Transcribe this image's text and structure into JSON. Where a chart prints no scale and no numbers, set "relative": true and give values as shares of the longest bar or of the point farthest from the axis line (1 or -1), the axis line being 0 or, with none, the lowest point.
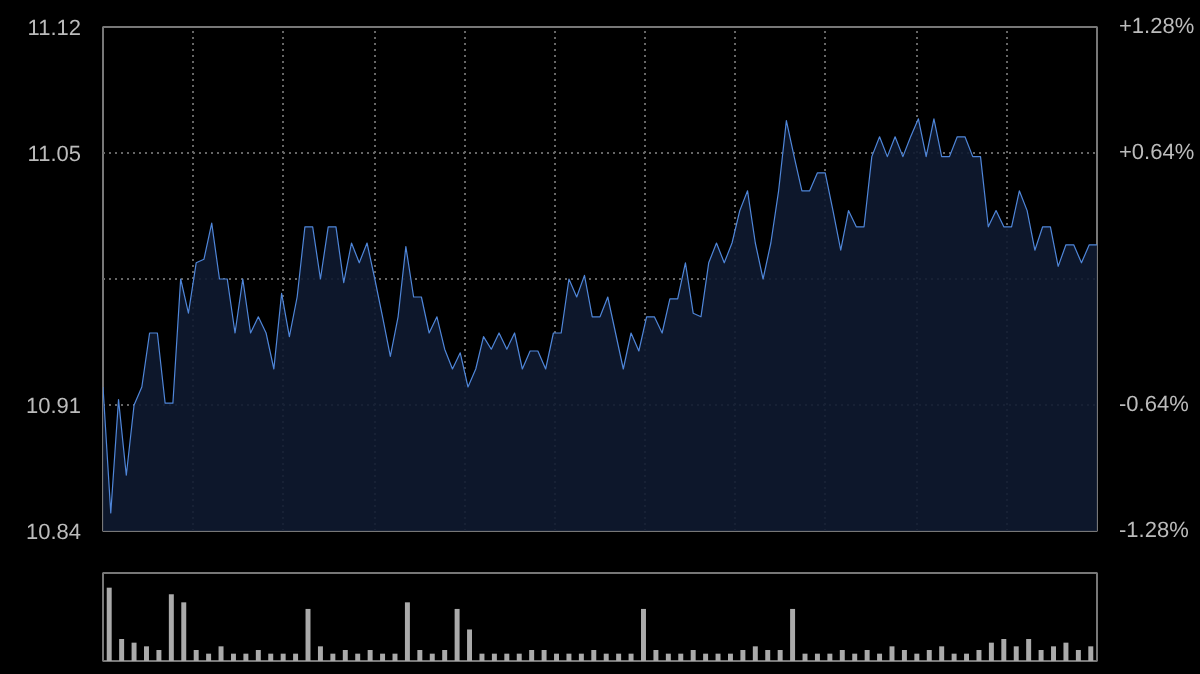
{
  "chart_data": [
    {
      "type": "area",
      "categories": [
        null,
        null,
        null,
        null,
        null,
        null,
        null,
        null,
        null,
        null,
        null,
        null,
        null,
        null,
        null,
        null,
        null,
        null,
        null,
        null,
        null,
        null,
        null,
        null,
        null,
        null,
        null,
        null,
        null,
        null,
        null,
        null,
        null,
        null,
        null,
        null,
        null,
        null,
        null,
        null,
        null,
        null,
        null,
        null,
        null,
        null,
        null,
        null,
        null,
        null,
        null,
        null,
        null,
        null,
        null,
        null,
        null,
        null,
        null,
        null,
        null,
        null,
        null,
        null,
        null,
        null,
        null,
        null,
        null,
        null,
        null,
        null,
        null,
        null,
        null,
        null,
        null,
        null,
        null,
        null,
        null,
        null,
        null,
        null,
        null,
        null,
        null,
        null,
        null,
        null,
        null,
        null,
        null,
        null,
        null,
        null,
        null,
        null,
        null,
        null,
        null,
        null,
        null,
        null,
        null,
        null,
        null,
        null,
        null,
        null,
        null,
        null,
        null,
        null,
        null,
        null,
        null,
        null,
        null,
        null,
        null,
        null,
        null,
        null,
        null,
        null,
        null,
        null,
        null
      ],
      "ylim": [
        10.84,
        11.12
      ],
      "yticks": [
        10.84,
        10.91,
        {
          "value": 10.98,
          "label": null
        },
        11.05,
        11.12
      ],
      "y2lim": [
        -1.28,
        1.28
      ],
      "y2ticks": [
        {
          "value": -1.28,
          "label": "-1.28%"
        },
        {
          "value": -0.64,
          "label": "-0.64%"
        },
        {
          "value": 0.64,
          "label": "+0.64%"
        },
        {
          "value": 1.28,
          "label": "+1.28%"
        }
      ],
      "grid": true,
      "series": [
        {
          "color": "#4f86d9",
          "values": [
            10.92,
            10.85,
            10.913,
            10.871,
            10.91,
            10.92,
            10.95,
            10.95,
            10.911,
            10.911,
            10.98,
            10.961,
            10.989,
            10.991,
            11.011,
            10.98,
            10.98,
            10.95,
            10.98,
            10.95,
            10.959,
            10.95,
            10.93,
            10.972,
            10.948,
            10.97,
            11.009,
            11.009,
            10.98,
            11.009,
            11.009,
            10.978,
            11.0,
            10.989,
            11.0,
            10.98,
            10.959,
            10.937,
            10.959,
            10.998,
            10.97,
            10.97,
            10.95,
            10.959,
            10.941,
            10.93,
            10.939,
            10.92,
            10.93,
            10.948,
            10.941,
            10.95,
            10.941,
            10.95,
            10.93,
            10.94,
            10.94,
            10.93,
            10.95,
            10.95,
            10.98,
            10.97,
            10.982,
            10.959,
            10.959,
            10.97,
            10.95,
            10.93,
            10.95,
            10.94,
            10.959,
            10.959,
            10.95,
            10.969,
            10.969,
            10.989,
            10.961,
            10.959,
            10.989,
            11.0,
            10.989,
            11.0,
            11.018,
            11.029,
            11.0,
            10.98,
            11.0,
            11.029,
            11.068,
            11.048,
            11.029,
            11.029,
            11.039,
            11.039,
            11.018,
            10.996,
            11.018,
            11.009,
            11.009,
            11.048,
            11.059,
            11.048,
            11.059,
            11.048,
            11.059,
            11.069,
            11.048,
            11.069,
            11.048,
            11.048,
            11.059,
            11.059,
            11.048,
            11.048,
            11.009,
            11.018,
            11.009,
            11.009,
            11.029,
            11.018,
            10.996,
            11.009,
            11.009,
            10.987,
            10.999,
            10.999,
            10.989,
            10.999,
            10.999
          ]
        }
      ]
    },
    {
      "type": "bar",
      "relative": true,
      "color": "#aaaaaa",
      "grid": false,
      "categories": [
        null,
        null,
        null,
        null,
        null,
        null,
        null,
        null,
        null,
        null,
        null,
        null,
        null,
        null,
        null,
        null,
        null,
        null,
        null,
        null,
        null,
        null,
        null,
        null,
        null,
        null,
        null,
        null,
        null,
        null,
        null,
        null,
        null,
        null,
        null,
        null,
        null,
        null,
        null,
        null,
        null,
        null,
        null,
        null,
        null,
        null,
        null,
        null,
        null,
        null,
        null,
        null,
        null,
        null,
        null,
        null,
        null,
        null,
        null,
        null,
        null,
        null,
        null,
        null,
        null,
        null,
        null,
        null,
        null,
        null,
        null,
        null,
        null,
        null,
        null,
        null,
        null,
        null,
        null,
        null
      ],
      "values": [
        1.0,
        0.3,
        0.25,
        0.2,
        0.15,
        0.91,
        0.8,
        0.15,
        0.1,
        0.2,
        0.1,
        0.1,
        0.15,
        0.1,
        0.1,
        0.1,
        0.71,
        0.2,
        0.1,
        0.15,
        0.1,
        0.15,
        0.1,
        0.1,
        0.8,
        0.15,
        0.1,
        0.15,
        0.71,
        0.43,
        0.1,
        0.1,
        0.1,
        0.1,
        0.15,
        0.15,
        0.1,
        0.1,
        0.1,
        0.15,
        0.1,
        0.1,
        0.1,
        0.71,
        0.15,
        0.1,
        0.1,
        0.15,
        0.1,
        0.1,
        0.1,
        0.15,
        0.2,
        0.15,
        0.15,
        0.71,
        0.1,
        0.1,
        0.1,
        0.15,
        0.1,
        0.15,
        0.1,
        0.2,
        0.15,
        0.1,
        0.15,
        0.2,
        0.1,
        0.1,
        0.15,
        0.25,
        0.3,
        0.2,
        0.3,
        0.15,
        0.2,
        0.25,
        0.15,
        0.2
      ]
    }
  ]
}
